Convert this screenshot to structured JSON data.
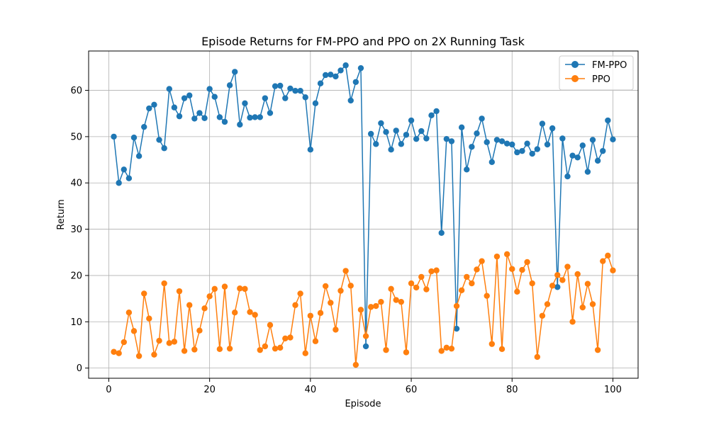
{
  "chart_data": {
    "type": "line",
    "title": "Episode Returns for FM-PPO and PPO on 2X Running Task",
    "xlabel": "Episode",
    "ylabel": "Return",
    "xlim": [
      -4,
      105
    ],
    "ylim": [
      -2.2,
      68.5
    ],
    "xticks": [
      0,
      20,
      40,
      60,
      80,
      100
    ],
    "yticks": [
      0,
      10,
      20,
      30,
      40,
      50,
      60
    ],
    "grid": true,
    "legend_position": "top-right",
    "x_start": 1,
    "series": [
      {
        "name": "FM-PPO",
        "color": "#1f77b4",
        "values": [
          50.0,
          40.0,
          42.9,
          41.0,
          49.8,
          45.8,
          52.1,
          56.1,
          56.9,
          49.3,
          47.5,
          60.3,
          56.3,
          54.4,
          58.3,
          58.9,
          53.9,
          55.1,
          54.0,
          60.3,
          58.6,
          54.2,
          53.2,
          61.1,
          64.0,
          52.6,
          57.2,
          54.1,
          54.2,
          54.2,
          58.3,
          55.1,
          60.9,
          61.0,
          58.3,
          60.4,
          59.9,
          59.9,
          58.5,
          47.2,
          57.2,
          61.5,
          63.3,
          63.4,
          63.0,
          64.3,
          65.4,
          57.8,
          61.8,
          64.8,
          4.7,
          50.6,
          48.4,
          52.9,
          51.0,
          47.2,
          51.3,
          48.4,
          50.4,
          53.5,
          49.5,
          51.2,
          49.6,
          54.6,
          55.5,
          29.2,
          49.5,
          49.0,
          8.5,
          52.0,
          42.9,
          47.8,
          50.7,
          53.9,
          48.8,
          44.5,
          49.3,
          49.0,
          48.5,
          48.3,
          46.6,
          46.9,
          48.5,
          46.3,
          47.3,
          52.8,
          48.3,
          51.8,
          17.5,
          49.6,
          41.4,
          45.9,
          45.5,
          48.1,
          42.4,
          49.3,
          44.8,
          46.9,
          53.5,
          49.4
        ]
      },
      {
        "name": "PPO",
        "color": "#ff7f0e",
        "values": [
          3.5,
          3.2,
          5.6,
          12.0,
          8.0,
          2.6,
          16.1,
          10.7,
          2.9,
          5.9,
          18.3,
          5.4,
          5.7,
          16.6,
          3.7,
          13.6,
          4.0,
          8.1,
          12.9,
          15.5,
          17.1,
          4.1,
          17.6,
          4.2,
          12.0,
          17.2,
          17.1,
          12.1,
          11.5,
          3.9,
          4.7,
          9.3,
          4.2,
          4.4,
          6.4,
          6.6,
          13.6,
          16.1,
          3.2,
          11.3,
          5.8,
          11.9,
          17.7,
          14.1,
          8.3,
          16.7,
          21.0,
          17.8,
          0.7,
          12.6,
          6.9,
          13.2,
          13.4,
          14.3,
          3.9,
          17.1,
          14.7,
          14.3,
          3.4,
          18.3,
          17.4,
          19.7,
          17.0,
          20.9,
          21.1,
          3.7,
          4.4,
          4.2,
          13.4,
          16.8,
          19.7,
          18.3,
          21.3,
          23.1,
          15.6,
          5.2,
          24.1,
          4.1,
          24.6,
          21.4,
          16.5,
          21.2,
          22.9,
          18.3,
          2.4,
          11.3,
          13.8,
          17.8,
          20.1,
          19.0,
          21.9,
          10.0,
          20.3,
          13.1,
          18.2,
          13.8,
          3.9,
          23.1,
          24.3,
          21.1
        ]
      }
    ]
  }
}
